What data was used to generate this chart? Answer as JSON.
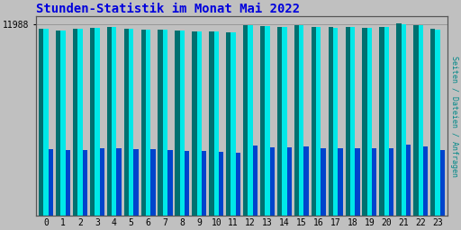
{
  "title": "Stunden-Statistik im Monat Mai 2022",
  "title_color": "#0000dd",
  "title_fontsize": 10,
  "xlabel_labels": [
    "0",
    "1",
    "2",
    "3",
    "4",
    "5",
    "6",
    "7",
    "8",
    "9",
    "10",
    "11",
    "12",
    "13",
    "14",
    "15",
    "16",
    "17",
    "18",
    "19",
    "20",
    "21",
    "22",
    "23"
  ],
  "ylabel_right": "Seiten / Dateien / Anfragen",
  "ylabel_right_color": "#008888",
  "ytick_label": "11988",
  "ytick_value": 11988,
  "background_color": "#c0c0c0",
  "plot_bg_color": "#c0c0c0",
  "color_green": "#007070",
  "color_cyan": "#00e8e8",
  "color_blue": "#0044cc",
  "ymin": 0,
  "ymax": 12500,
  "bar_gap": 0.05,
  "hours_values_green": [
    11720,
    11600,
    11700,
    11790,
    11840,
    11700,
    11670,
    11650,
    11590,
    11560,
    11530,
    11510,
    11960,
    11870,
    11820,
    11940,
    11810,
    11800,
    11820,
    11790,
    11820,
    12040,
    11940,
    11700
  ],
  "hours_values_cyan": [
    11700,
    11580,
    11690,
    11780,
    11820,
    11690,
    11660,
    11640,
    11580,
    11550,
    11520,
    11495,
    11950,
    11860,
    11810,
    11930,
    11800,
    11790,
    11810,
    11780,
    11810,
    12010,
    11920,
    11680
  ],
  "hours_values_blue": [
    4200,
    4100,
    4150,
    4220,
    4250,
    4180,
    4160,
    4140,
    4090,
    4060,
    4020,
    3980,
    4380,
    4310,
    4270,
    4350,
    4250,
    4240,
    4260,
    4230,
    4260,
    4460,
    4370,
    4130
  ]
}
